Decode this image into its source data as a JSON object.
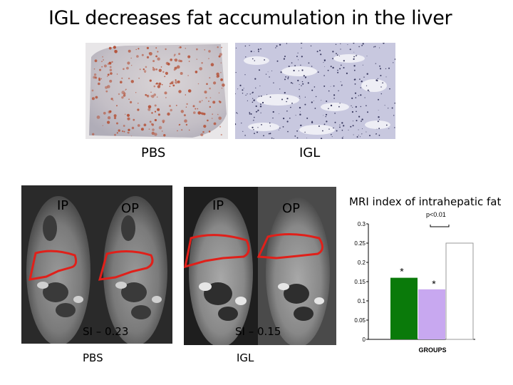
{
  "title": "IGL decreases fat accumulation in the liver",
  "histology": {
    "left_label": "PBS",
    "right_label": "IGL"
  },
  "mri": {
    "left": {
      "ip_label": "IP",
      "op_label": "OP",
      "si_label": "SI – 0.23",
      "group_label": "PBS"
    },
    "right": {
      "ip_label": "IP",
      "op_label": "OP",
      "si_label": "SI – 0.15",
      "group_label": "IGL"
    }
  },
  "chart_data": {
    "type": "bar",
    "title": "MRI index of intrahepatic fat",
    "xlabel": "GROUPS",
    "ylabel": "",
    "ylim": [
      0,
      0.3
    ],
    "yticks": [
      "0",
      "0.05",
      "0.1",
      "0.15",
      "0.2",
      "0.25",
      "0.3"
    ],
    "values": [
      0.16,
      0.13,
      0.25
    ],
    "colors": [
      "#0a7a0a",
      "#c8a8f0",
      "#ffffff"
    ],
    "annotations": {
      "significance": "p<0.01",
      "star1": "*",
      "star2": "*"
    }
  }
}
